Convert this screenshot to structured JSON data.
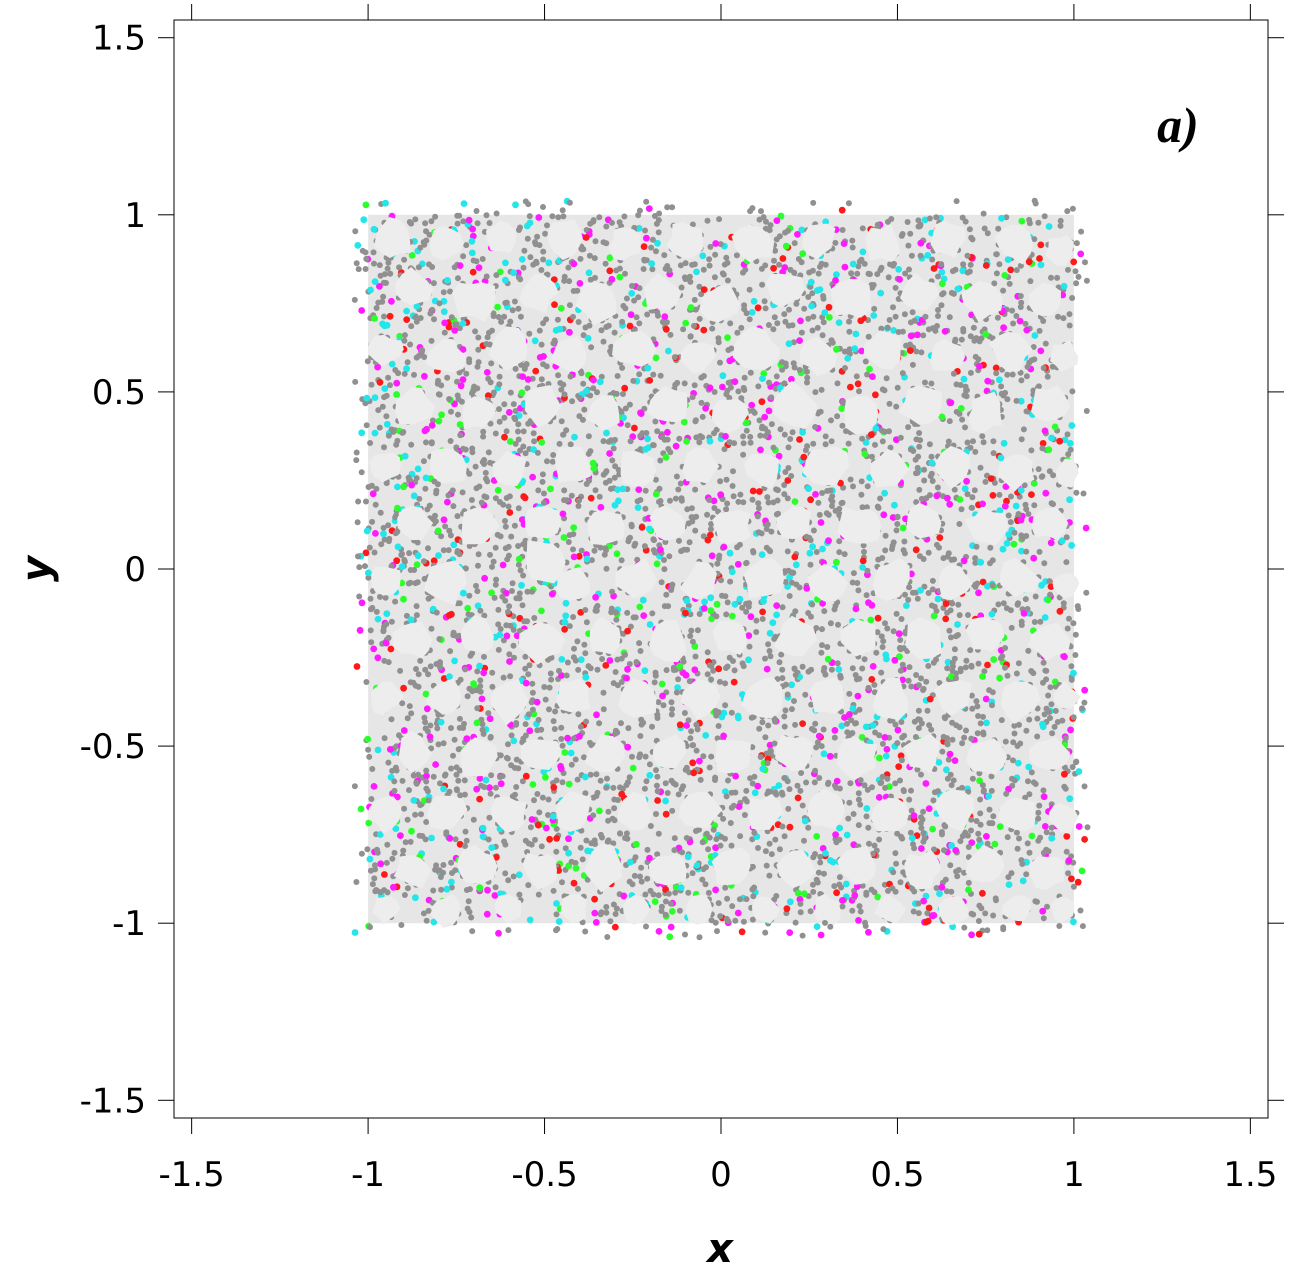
{
  "chart_data": {
    "type": "scatter",
    "title": "",
    "panel_label": "a)",
    "xlabel": "x",
    "ylabel": "y",
    "xlim": [
      -1.55,
      1.55
    ],
    "ylim": [
      -1.55,
      1.55
    ],
    "xticks": [
      -1.5,
      -1,
      -0.5,
      0,
      0.5,
      1,
      1.5
    ],
    "yticks": [
      -1.5,
      -1,
      -0.5,
      0,
      0.5,
      1,
      1.5
    ],
    "xtick_labels": [
      "-1.5",
      "-1",
      "-0.5",
      "0",
      "0.5",
      "1",
      "1.5"
    ],
    "ytick_labels": [
      "-1.5",
      "-1",
      "-0.5",
      "0",
      "0.5",
      "1",
      "1.5"
    ],
    "grid": false,
    "legend": "none",
    "domain": {
      "x": [
        -1,
        1
      ],
      "y": [
        -1,
        1
      ]
    },
    "colors": {
      "domain_fill": "#e6e6e6",
      "grains": "#ededed",
      "particles": "#909090",
      "red": "#ff1a1a",
      "magenta": "#ff1aff",
      "cyan": "#22e6ea",
      "green": "#2aff2a"
    },
    "grains": [
      [
        -0.93,
        0.93,
        0.055
      ],
      [
        -0.78,
        0.92,
        0.05
      ],
      [
        -0.62,
        0.94,
        0.045
      ],
      [
        -0.44,
        0.93,
        0.05
      ],
      [
        -0.27,
        0.92,
        0.045
      ],
      [
        -0.1,
        0.93,
        0.05
      ],
      [
        0.09,
        0.92,
        0.055
      ],
      [
        0.28,
        0.93,
        0.045
      ],
      [
        0.46,
        0.92,
        0.05
      ],
      [
        0.64,
        0.93,
        0.05
      ],
      [
        0.83,
        0.92,
        0.05
      ],
      [
        0.96,
        0.9,
        0.04
      ],
      [
        -0.87,
        0.79,
        0.05
      ],
      [
        -0.7,
        0.76,
        0.06
      ],
      [
        -0.52,
        0.78,
        0.05
      ],
      [
        -0.35,
        0.76,
        0.06
      ],
      [
        -0.17,
        0.78,
        0.05
      ],
      [
        0.0,
        0.75,
        0.055
      ],
      [
        0.18,
        0.79,
        0.05
      ],
      [
        0.37,
        0.77,
        0.06
      ],
      [
        0.56,
        0.78,
        0.05
      ],
      [
        0.74,
        0.76,
        0.055
      ],
      [
        0.92,
        0.76,
        0.05
      ],
      [
        -0.95,
        0.62,
        0.045
      ],
      [
        -0.78,
        0.6,
        0.05
      ],
      [
        -0.6,
        0.62,
        0.055
      ],
      [
        -0.43,
        0.6,
        0.05
      ],
      [
        -0.25,
        0.62,
        0.055
      ],
      [
        -0.07,
        0.6,
        0.05
      ],
      [
        0.1,
        0.62,
        0.06
      ],
      [
        0.28,
        0.6,
        0.05
      ],
      [
        0.46,
        0.62,
        0.055
      ],
      [
        0.64,
        0.6,
        0.05
      ],
      [
        0.82,
        0.62,
        0.055
      ],
      [
        0.97,
        0.6,
        0.04
      ],
      [
        -0.87,
        0.46,
        0.055
      ],
      [
        -0.69,
        0.44,
        0.05
      ],
      [
        -0.51,
        0.46,
        0.055
      ],
      [
        -0.33,
        0.44,
        0.05
      ],
      [
        -0.15,
        0.46,
        0.055
      ],
      [
        0.03,
        0.44,
        0.05
      ],
      [
        0.21,
        0.46,
        0.055
      ],
      [
        0.39,
        0.44,
        0.05
      ],
      [
        0.57,
        0.46,
        0.06
      ],
      [
        0.75,
        0.44,
        0.05
      ],
      [
        0.93,
        0.46,
        0.05
      ],
      [
        -0.95,
        0.29,
        0.045
      ],
      [
        -0.78,
        0.29,
        0.055
      ],
      [
        -0.6,
        0.28,
        0.05
      ],
      [
        -0.42,
        0.29,
        0.055
      ],
      [
        -0.24,
        0.28,
        0.05
      ],
      [
        -0.06,
        0.29,
        0.055
      ],
      [
        0.12,
        0.28,
        0.05
      ],
      [
        0.3,
        0.29,
        0.06
      ],
      [
        0.48,
        0.28,
        0.05
      ],
      [
        0.66,
        0.29,
        0.055
      ],
      [
        0.84,
        0.28,
        0.05
      ],
      [
        0.98,
        0.27,
        0.035
      ],
      [
        -0.87,
        0.13,
        0.05
      ],
      [
        -0.69,
        0.12,
        0.055
      ],
      [
        -0.51,
        0.13,
        0.05
      ],
      [
        -0.33,
        0.12,
        0.055
      ],
      [
        -0.15,
        0.13,
        0.05
      ],
      [
        0.03,
        0.12,
        0.055
      ],
      [
        0.21,
        0.13,
        0.05
      ],
      [
        0.39,
        0.12,
        0.055
      ],
      [
        0.57,
        0.13,
        0.05
      ],
      [
        0.75,
        0.12,
        0.055
      ],
      [
        0.93,
        0.13,
        0.05
      ],
      [
        -0.95,
        -0.03,
        0.045
      ],
      [
        -0.78,
        -0.04,
        0.055
      ],
      [
        -0.5,
        0.02,
        0.065
      ],
      [
        -0.42,
        -0.04,
        0.05
      ],
      [
        -0.24,
        -0.03,
        0.055
      ],
      [
        -0.06,
        -0.04,
        0.05
      ],
      [
        0.12,
        -0.03,
        0.055
      ],
      [
        0.3,
        -0.04,
        0.05
      ],
      [
        0.48,
        -0.03,
        0.055
      ],
      [
        0.66,
        -0.04,
        0.05
      ],
      [
        0.84,
        -0.03,
        0.055
      ],
      [
        0.98,
        -0.04,
        0.035
      ],
      [
        -0.87,
        -0.2,
        0.055
      ],
      [
        -0.69,
        -0.19,
        0.05
      ],
      [
        -0.51,
        -0.2,
        0.06
      ],
      [
        -0.33,
        -0.19,
        0.05
      ],
      [
        -0.15,
        -0.2,
        0.055
      ],
      [
        0.03,
        -0.19,
        0.05
      ],
      [
        0.21,
        -0.2,
        0.055
      ],
      [
        0.39,
        -0.19,
        0.05
      ],
      [
        0.57,
        -0.2,
        0.055
      ],
      [
        0.75,
        -0.19,
        0.05
      ],
      [
        0.93,
        -0.2,
        0.055
      ],
      [
        -0.95,
        -0.36,
        0.045
      ],
      [
        -0.78,
        -0.36,
        0.05
      ],
      [
        -0.6,
        -0.37,
        0.055
      ],
      [
        -0.42,
        -0.36,
        0.05
      ],
      [
        -0.24,
        -0.37,
        0.055
      ],
      [
        -0.06,
        -0.36,
        0.05
      ],
      [
        0.12,
        -0.37,
        0.055
      ],
      [
        0.3,
        -0.36,
        0.05
      ],
      [
        0.48,
        -0.37,
        0.055
      ],
      [
        0.66,
        -0.36,
        0.05
      ],
      [
        0.84,
        -0.37,
        0.055
      ],
      [
        0.98,
        -0.36,
        0.035
      ],
      [
        -0.87,
        -0.52,
        0.05
      ],
      [
        -0.69,
        -0.53,
        0.055
      ],
      [
        -0.51,
        -0.52,
        0.05
      ],
      [
        -0.33,
        -0.53,
        0.055
      ],
      [
        -0.15,
        -0.52,
        0.05
      ],
      [
        0.03,
        -0.53,
        0.055
      ],
      [
        0.21,
        -0.52,
        0.05
      ],
      [
        0.39,
        -0.53,
        0.055
      ],
      [
        0.57,
        -0.52,
        0.05
      ],
      [
        0.75,
        -0.53,
        0.055
      ],
      [
        0.93,
        -0.52,
        0.05
      ],
      [
        -0.95,
        -0.69,
        0.045
      ],
      [
        -0.78,
        -0.68,
        0.055
      ],
      [
        -0.6,
        -0.69,
        0.05
      ],
      [
        -0.42,
        -0.68,
        0.055
      ],
      [
        -0.24,
        -0.69,
        0.05
      ],
      [
        -0.06,
        -0.68,
        0.055
      ],
      [
        0.12,
        -0.69,
        0.05
      ],
      [
        0.3,
        -0.68,
        0.055
      ],
      [
        0.48,
        -0.69,
        0.05
      ],
      [
        0.66,
        -0.68,
        0.055
      ],
      [
        0.84,
        -0.69,
        0.05
      ],
      [
        0.97,
        -0.7,
        0.04
      ],
      [
        -0.87,
        -0.85,
        0.05
      ],
      [
        -0.69,
        -0.84,
        0.055
      ],
      [
        -0.51,
        -0.85,
        0.05
      ],
      [
        -0.33,
        -0.84,
        0.055
      ],
      [
        -0.15,
        -0.85,
        0.05
      ],
      [
        0.03,
        -0.84,
        0.055
      ],
      [
        0.21,
        -0.85,
        0.05
      ],
      [
        0.39,
        -0.84,
        0.055
      ],
      [
        0.57,
        -0.85,
        0.05
      ],
      [
        0.75,
        -0.84,
        0.055
      ],
      [
        0.93,
        -0.85,
        0.05
      ],
      [
        -0.95,
        -0.96,
        0.035
      ],
      [
        -0.78,
        -0.96,
        0.04
      ],
      [
        -0.6,
        -0.96,
        0.04
      ],
      [
        -0.42,
        -0.96,
        0.04
      ],
      [
        -0.24,
        -0.96,
        0.04
      ],
      [
        -0.06,
        -0.96,
        0.04
      ],
      [
        0.12,
        -0.96,
        0.04
      ],
      [
        0.3,
        -0.96,
        0.04
      ],
      [
        0.48,
        -0.96,
        0.04
      ],
      [
        0.66,
        -0.96,
        0.04
      ],
      [
        0.84,
        -0.96,
        0.04
      ],
      [
        0.97,
        -0.96,
        0.035
      ]
    ]
  }
}
